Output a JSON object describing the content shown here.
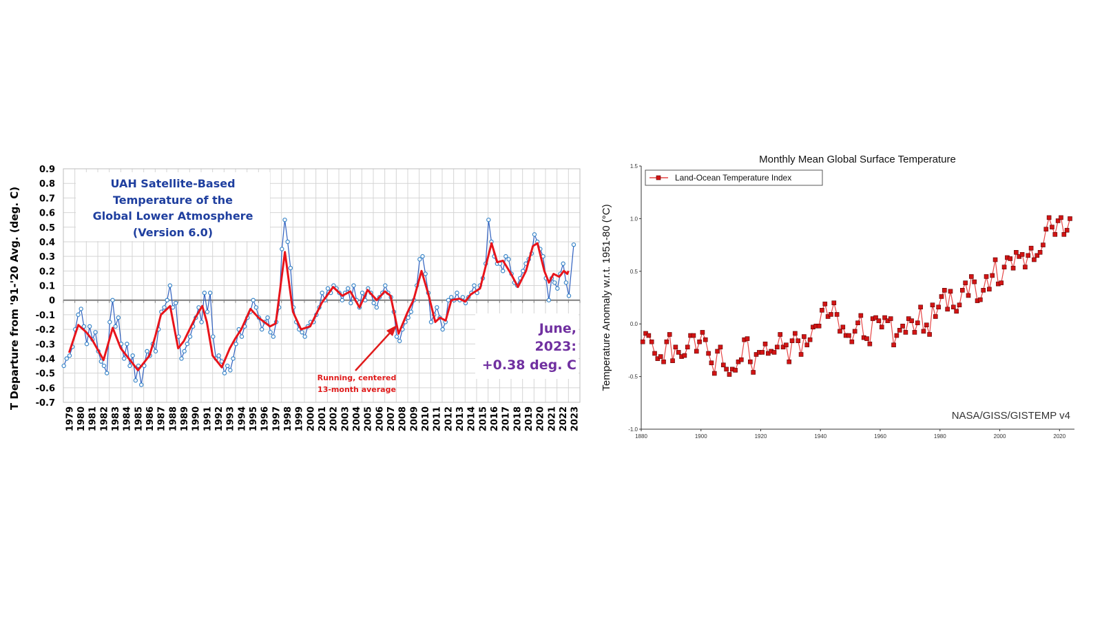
{
  "chart_data": [
    {
      "type": "line",
      "title": "UAH Satellite-Based Temperature of the Global Lower Atmosphere (Version 6.0)",
      "title_lines": [
        "UAH Satellite-Based",
        "Temperature of the",
        "Global Lower Atmosphere",
        "(Version 6.0)"
      ],
      "xlabel": "",
      "ylabel": "T Departure from '91-'20 Avg. (deg. C)",
      "ylim": [
        -0.7,
        0.9
      ],
      "xlim": [
        1979,
        2024
      ],
      "grid": true,
      "y_ticks": [
        "0.9",
        "0.8",
        "0.7",
        "0.6",
        "0.5",
        "0.4",
        "0.3",
        "0.2",
        "0.1",
        "0",
        "-0.1",
        "-0.2",
        "-0.3",
        "-0.4",
        "-0.5",
        "-0.6",
        "-0.7"
      ],
      "x_ticks": [
        "1979",
        "1980",
        "1981",
        "1982",
        "1983",
        "1984",
        "1985",
        "1986",
        "1987",
        "1988",
        "1989",
        "1990",
        "1991",
        "1992",
        "1993",
        "1994",
        "1995",
        "1996",
        "1997",
        "1998",
        "1999",
        "2000",
        "2001",
        "2002",
        "2003",
        "2004",
        "2005",
        "2006",
        "2007",
        "2008",
        "2009",
        "2010",
        "2011",
        "2012",
        "2013",
        "2014",
        "2015",
        "2016",
        "2017",
        "2018",
        "2019",
        "2020",
        "2021",
        "2022",
        "2023"
      ],
      "colors": {
        "monthly": "#2e5fbf",
        "marker": "#3a86c8",
        "running_mean": "#e8141b",
        "title": "#1f3f9f",
        "latest": "#7030a0"
      },
      "series": [
        {
          "kind": "monthly (sampled quarterly)",
          "start_year": 1979,
          "values": [
            -0.45,
            -0.4,
            -0.38,
            -0.32,
            -0.2,
            -0.1,
            -0.06,
            -0.18,
            -0.3,
            -0.18,
            -0.27,
            -0.22,
            -0.35,
            -0.42,
            -0.45,
            -0.5,
            -0.15,
            0.0,
            -0.18,
            -0.12,
            -0.3,
            -0.4,
            -0.3,
            -0.45,
            -0.38,
            -0.55,
            -0.45,
            -0.58,
            -0.45,
            -0.35,
            -0.38,
            -0.3,
            -0.35,
            -0.2,
            -0.08,
            -0.05,
            0.0,
            0.1,
            -0.05,
            -0.02,
            -0.25,
            -0.4,
            -0.35,
            -0.3,
            -0.25,
            -0.18,
            -0.12,
            -0.05,
            -0.15,
            0.05,
            -0.08,
            0.05,
            -0.25,
            -0.4,
            -0.38,
            -0.42,
            -0.5,
            -0.45,
            -0.48,
            -0.4,
            -0.3,
            -0.2,
            -0.25,
            -0.18,
            -0.12,
            -0.08,
            0.0,
            -0.05,
            -0.12,
            -0.2,
            -0.15,
            -0.12,
            -0.22,
            -0.25,
            -0.15,
            -0.05,
            0.35,
            0.55,
            0.4,
            0.22,
            -0.05,
            -0.15,
            -0.2,
            -0.22,
            -0.25,
            -0.18,
            -0.15,
            -0.15,
            -0.1,
            -0.05,
            0.05,
            0.0,
            0.08,
            0.05,
            0.1,
            0.08,
            0.05,
            0.0,
            0.05,
            0.08,
            -0.02,
            0.1,
            0.0,
            -0.05,
            0.05,
            0.0,
            0.08,
            0.05,
            -0.02,
            -0.05,
            0.02,
            0.05,
            0.1,
            0.05,
            0.02,
            -0.08,
            -0.25,
            -0.28,
            -0.2,
            -0.15,
            -0.12,
            -0.08,
            0.0,
            0.1,
            0.28,
            0.3,
            0.18,
            0.05,
            -0.15,
            -0.1,
            -0.05,
            -0.12,
            -0.2,
            -0.15,
            0.0,
            0.02,
            0.0,
            0.05,
            0.0,
            0.02,
            -0.02,
            0.02,
            0.05,
            0.1,
            0.05,
            0.1,
            0.15,
            0.25,
            0.55,
            0.4,
            0.3,
            0.25,
            0.25,
            0.2,
            0.3,
            0.28,
            0.18,
            0.12,
            0.1,
            0.15,
            0.2,
            0.25,
            0.28,
            0.32,
            0.45,
            0.4,
            0.35,
            0.3,
            0.15,
            0.0,
            0.15,
            0.12,
            0.08,
            0.18,
            0.25,
            0.12,
            0.03,
            0.38
          ]
        },
        {
          "kind": "running_mean",
          "name": "Running, centered 13-month average",
          "x": [
            1979.5,
            1980.3,
            1981.0,
            1981.5,
            1982.5,
            1983.3,
            1984.0,
            1984.5,
            1985.5,
            1986.5,
            1987.0,
            1987.5,
            1988.3,
            1989.0,
            1989.5,
            1990.0,
            1990.5,
            1991.1,
            1991.5,
            1992.0,
            1992.8,
            1993.5,
            1994.0,
            1994.5,
            1995.3,
            1996.0,
            1996.5,
            1997.0,
            1997.5,
            1998.3,
            1999.0,
            1999.7,
            2000.5,
            2001.5,
            2002.5,
            2003.3,
            2004.0,
            2004.8,
            2005.5,
            2006.3,
            2007.0,
            2007.5,
            2008.2,
            2009.0,
            2009.5,
            2010.2,
            2010.8,
            2011.4,
            2011.8,
            2012.3,
            2012.8,
            2013.5,
            2014.0,
            2014.5,
            2015.3,
            2016.3,
            2016.8,
            2017.3,
            2018.0,
            2018.6,
            2019.3,
            2019.9,
            2020.3,
            2020.9,
            2021.3,
            2021.7,
            2022.2,
            2022.6,
            2022.9,
            2023.0
          ],
          "values": [
            -0.36,
            -0.17,
            -0.22,
            -0.27,
            -0.41,
            -0.19,
            -0.33,
            -0.38,
            -0.48,
            -0.38,
            -0.25,
            -0.1,
            -0.04,
            -0.33,
            -0.28,
            -0.2,
            -0.12,
            -0.04,
            -0.15,
            -0.38,
            -0.46,
            -0.33,
            -0.26,
            -0.2,
            -0.06,
            -0.12,
            -0.15,
            -0.18,
            -0.16,
            0.33,
            -0.08,
            -0.2,
            -0.18,
            -0.02,
            0.09,
            0.03,
            0.06,
            -0.05,
            0.07,
            0.0,
            0.06,
            0.03,
            -0.23,
            -0.08,
            0.0,
            0.2,
            0.04,
            -0.15,
            -0.12,
            -0.14,
            0.0,
            0.01,
            -0.01,
            0.04,
            0.08,
            0.39,
            0.26,
            0.27,
            0.18,
            0.09,
            0.2,
            0.37,
            0.39,
            0.2,
            0.12,
            0.18,
            0.16,
            0.2,
            0.18,
            0.2
          ]
        }
      ],
      "annotations": {
        "running_mean_note": [
          "Running, centered",
          "13-month average"
        ],
        "latest": [
          "June,",
          "2023:",
          "+0.38 deg. C"
        ]
      }
    },
    {
      "type": "line",
      "title": "Monthly Mean Global Surface Temperature",
      "xlabel": "",
      "ylabel": "Temperature Anomaly w.r.t. 1951-80 (°C)",
      "ylim": [
        -1.0,
        1.5
      ],
      "xlim": [
        1880,
        2025
      ],
      "grid": false,
      "legend_position": "top-left",
      "source": "NASA/GISS/GISTEMP v4",
      "y_ticks": [
        "1.5",
        "1.0",
        "0.5",
        "0.0",
        "-0.5",
        "-1.0"
      ],
      "x_ticks": [
        "1880",
        "1900",
        "1920",
        "1940",
        "1960",
        "1980",
        "2000",
        "2020"
      ],
      "colors": {
        "series": "#d21414",
        "marker_edge": "#5a0000"
      },
      "series": [
        {
          "name": "Land-Ocean Temperature Index",
          "start_year": 1880,
          "values": [
            -0.17,
            -0.09,
            -0.11,
            -0.17,
            -0.28,
            -0.33,
            -0.31,
            -0.36,
            -0.17,
            -0.1,
            -0.35,
            -0.22,
            -0.27,
            -0.31,
            -0.3,
            -0.22,
            -0.11,
            -0.11,
            -0.26,
            -0.17,
            -0.08,
            -0.15,
            -0.28,
            -0.37,
            -0.47,
            -0.26,
            -0.22,
            -0.39,
            -0.43,
            -0.48,
            -0.43,
            -0.44,
            -0.36,
            -0.34,
            -0.15,
            -0.14,
            -0.36,
            -0.46,
            -0.29,
            -0.27,
            -0.27,
            -0.19,
            -0.28,
            -0.26,
            -0.27,
            -0.22,
            -0.1,
            -0.22,
            -0.2,
            -0.36,
            -0.16,
            -0.09,
            -0.16,
            -0.29,
            -0.12,
            -0.2,
            -0.15,
            -0.03,
            -0.02,
            -0.02,
            0.13,
            0.19,
            0.07,
            0.09,
            0.2,
            0.09,
            -0.07,
            -0.03,
            -0.11,
            -0.11,
            -0.17,
            -0.07,
            0.01,
            0.08,
            -0.13,
            -0.14,
            -0.19,
            0.05,
            0.06,
            0.03,
            -0.03,
            0.06,
            0.03,
            0.05,
            -0.2,
            -0.11,
            -0.06,
            -0.02,
            -0.08,
            0.05,
            0.03,
            -0.08,
            0.01,
            0.16,
            -0.07,
            -0.01,
            -0.1,
            0.18,
            0.07,
            0.16,
            0.26,
            0.32,
            0.14,
            0.31,
            0.16,
            0.12,
            0.18,
            0.32,
            0.39,
            0.27,
            0.45,
            0.4,
            0.22,
            0.23,
            0.32,
            0.45,
            0.33,
            0.46,
            0.61,
            0.38,
            0.39,
            0.54,
            0.63,
            0.62,
            0.53,
            0.68,
            0.64,
            0.66,
            0.54,
            0.65,
            0.72,
            0.61,
            0.65,
            0.68,
            0.75,
            0.9,
            1.01,
            0.92,
            0.85,
            0.98,
            1.01,
            0.85,
            0.89,
            1.0
          ]
        }
      ]
    }
  ]
}
